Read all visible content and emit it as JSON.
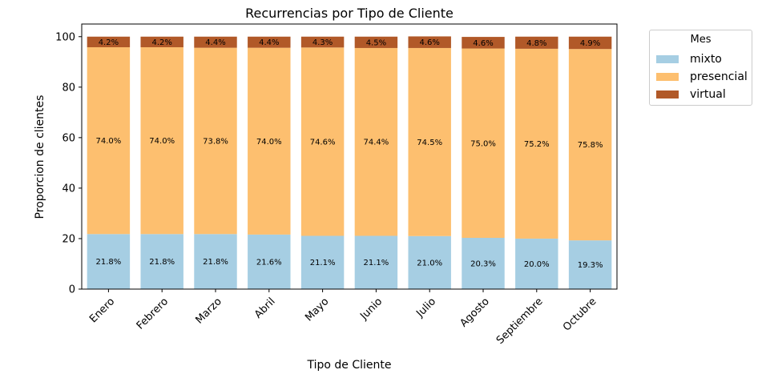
{
  "chart_data": {
    "type": "bar",
    "stacked": true,
    "title": "Recurrencias por Tipo de Cliente",
    "xlabel": "Tipo de Cliente",
    "ylabel": "Proporcion de clientes",
    "ylim": [
      0,
      105
    ],
    "yticks": [
      0,
      20,
      40,
      60,
      80,
      100
    ],
    "grid": false,
    "legend": {
      "title": "Mes",
      "placement": "outside-top-right"
    },
    "categories": [
      "Enero",
      "Febrero",
      "Marzo",
      "Abril",
      "Mayo",
      "Junio",
      "Julio",
      "Agosto",
      "Septiembre",
      "Octubre"
    ],
    "series": [
      {
        "name": "mixto",
        "color": "#a6cee3",
        "values": [
          21.8,
          21.8,
          21.8,
          21.6,
          21.1,
          21.1,
          21.0,
          20.3,
          20.0,
          19.3
        ],
        "labels": [
          "21.8%",
          "21.8%",
          "21.8%",
          "21.6%",
          "21.1%",
          "21.1%",
          "21.0%",
          "20.3%",
          "20.0%",
          "19.3%"
        ]
      },
      {
        "name": "presencial",
        "color": "#fdbf6f",
        "values": [
          74.0,
          74.0,
          73.8,
          74.0,
          74.6,
          74.4,
          74.5,
          75.0,
          75.2,
          75.8
        ],
        "labels": [
          "74.0%",
          "74.0%",
          "73.8%",
          "74.0%",
          "74.6%",
          "74.4%",
          "74.5%",
          "75.0%",
          "75.2%",
          "75.8%"
        ]
      },
      {
        "name": "virtual",
        "color": "#b15928",
        "values": [
          4.2,
          4.2,
          4.4,
          4.4,
          4.3,
          4.5,
          4.6,
          4.6,
          4.8,
          4.9
        ],
        "labels": [
          "4.2%",
          "4.2%",
          "4.4%",
          "4.4%",
          "4.3%",
          "4.5%",
          "4.6%",
          "4.6%",
          "4.8%",
          "4.9%"
        ]
      }
    ]
  }
}
